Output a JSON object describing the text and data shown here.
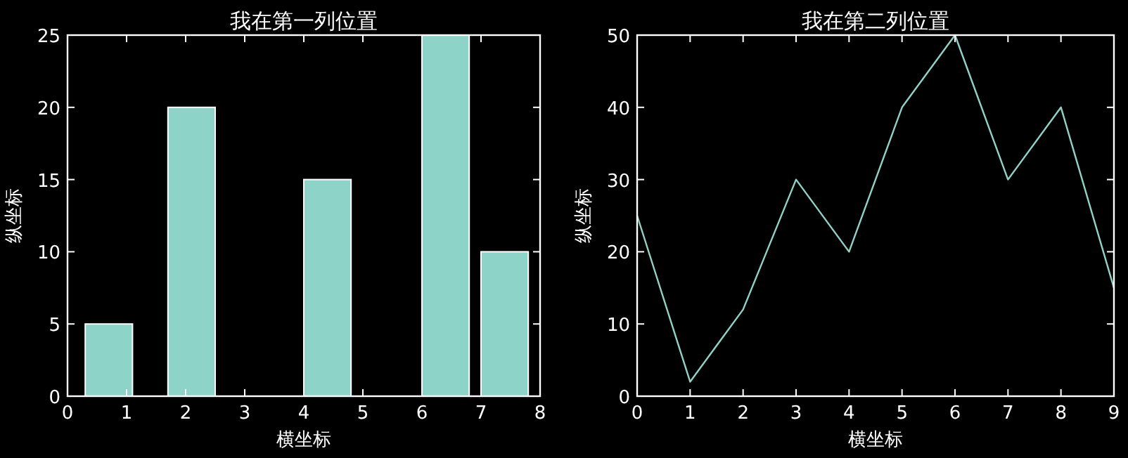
{
  "chart_data": [
    {
      "type": "bar",
      "title": "我在第一列位置",
      "xlabel": "横坐标",
      "ylabel": "纵坐标",
      "x": [
        0.7,
        2.1,
        4.4,
        6.4,
        7.4
      ],
      "values": [
        5,
        20,
        15,
        25,
        10
      ],
      "color": "#8dd3c7",
      "xlim": [
        0,
        8
      ],
      "xticks": [
        0,
        1,
        2,
        3,
        4,
        5,
        6,
        7,
        8
      ],
      "ylim": [
        0,
        25
      ],
      "yticks": [
        0,
        5,
        10,
        15,
        20,
        25
      ],
      "grid": false
    },
    {
      "type": "line",
      "title": "我在第二列位置",
      "xlabel": "横坐标",
      "ylabel": "纵坐标",
      "x": [
        0,
        1,
        2,
        3,
        4,
        5,
        6,
        7,
        8,
        9
      ],
      "values": [
        25,
        2,
        12,
        30,
        20,
        40,
        50,
        30,
        40,
        15
      ],
      "color": "#8dd3c7",
      "xlim": [
        0,
        9
      ],
      "xticks": [
        0,
        1,
        2,
        3,
        4,
        5,
        6,
        7,
        8,
        9
      ],
      "ylim": [
        0,
        50
      ],
      "yticks": [
        0,
        10,
        20,
        30,
        40,
        50
      ],
      "grid": false,
      "marker": "none"
    }
  ]
}
